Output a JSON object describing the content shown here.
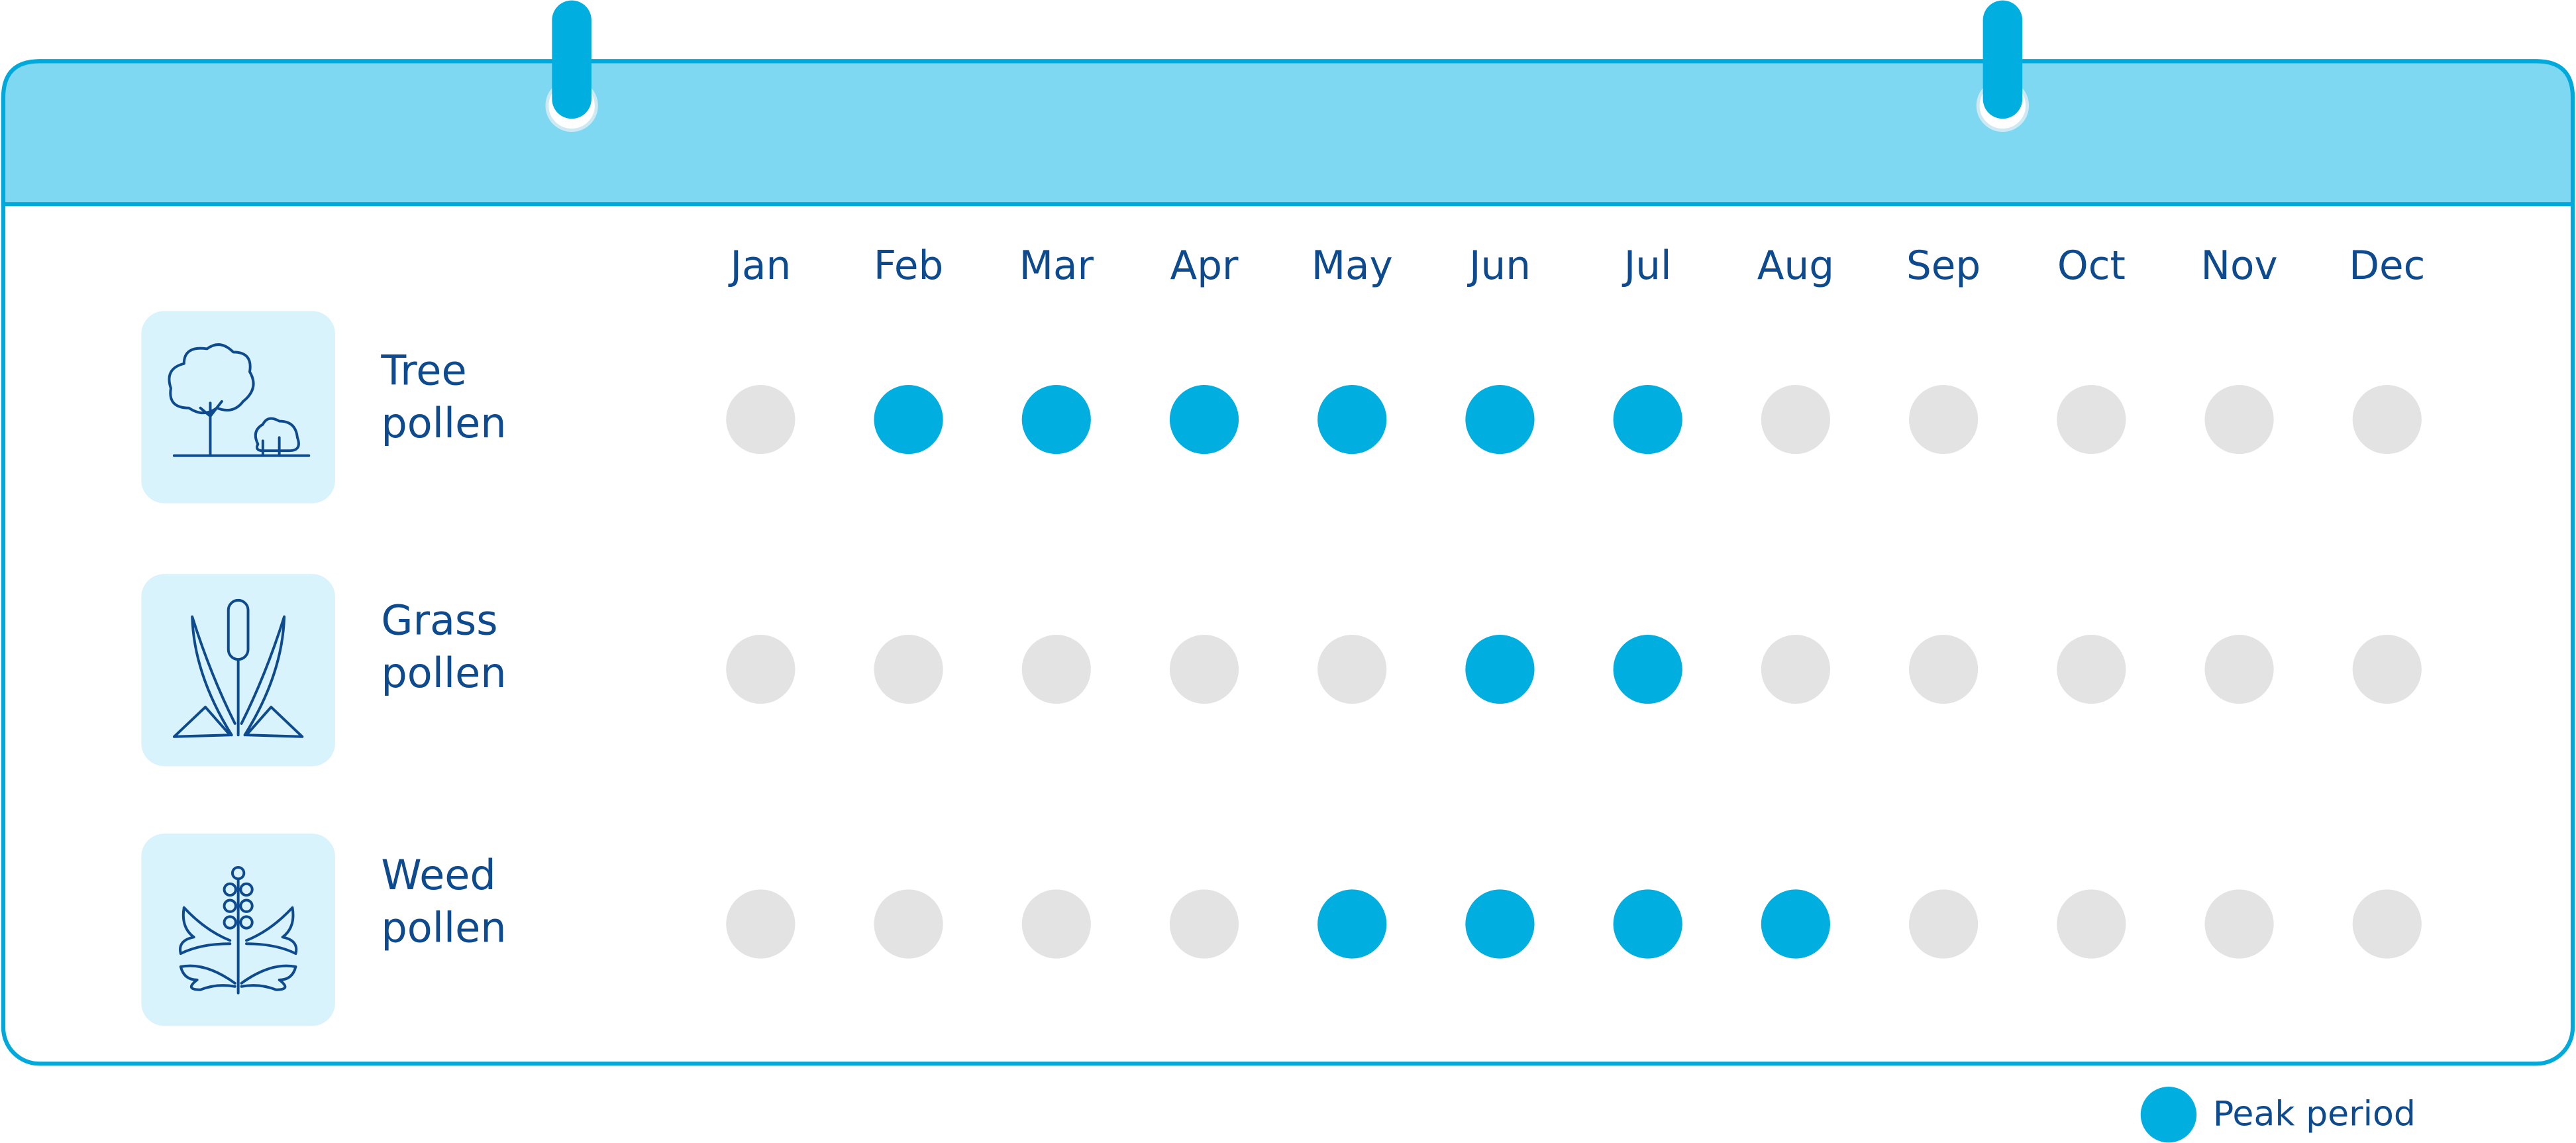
{
  "months": [
    "Jan",
    "Feb",
    "Mar",
    "Apr",
    "May",
    "Jun",
    "Jul",
    "Aug",
    "Sep",
    "Oct",
    "Nov",
    "Dec"
  ],
  "rows": [
    {
      "label": [
        "Tree",
        "pollen"
      ],
      "peak": [
        false,
        true,
        true,
        true,
        true,
        true,
        true,
        false,
        false,
        false,
        false,
        false
      ]
    },
    {
      "label": [
        "Grass",
        "pollen"
      ],
      "peak": [
        false,
        false,
        false,
        false,
        false,
        true,
        true,
        false,
        false,
        false,
        false,
        false
      ]
    },
    {
      "label": [
        "Weed",
        "pollen"
      ],
      "peak": [
        false,
        false,
        false,
        false,
        true,
        true,
        true,
        true,
        false,
        false,
        false,
        false
      ]
    }
  ],
  "peak_color": "#00aee0",
  "off_color": "#e3e3e3",
  "legend": {
    "label": "Peak period"
  }
}
